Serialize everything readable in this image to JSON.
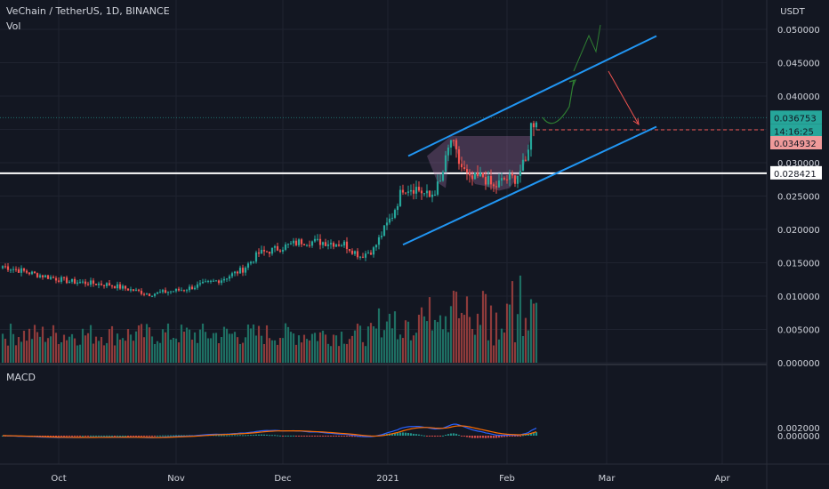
{
  "header": {
    "title": "VeChain / TetherUS, 1D, BINANCE",
    "vol_label": "Vol"
  },
  "currency_label": "USDT",
  "macd_label": "MACD",
  "colors": {
    "background": "#131722",
    "grid": "#1f2330",
    "up": "#26a69a",
    "down": "#ef5350",
    "vol_up": "#1e6f63",
    "vol_down": "#8e3b3b",
    "channel": "#2196f3",
    "macd_line": "#2962ff",
    "signal_line": "#ff6d00",
    "text": "#d1d4dc"
  },
  "price_scale": {
    "ticks": [
      "0.050000",
      "0.045000",
      "0.040000",
      "0.035000",
      "0.030000",
      "0.025000",
      "0.020000",
      "0.015000",
      "0.010000",
      "0.005000",
      "0.000000"
    ],
    "badges": {
      "last": "0.036753",
      "countdown": "14:16:25",
      "target": "0.034932",
      "support": "0.028421"
    }
  },
  "macd_scale": {
    "ticks": [
      "0.002000",
      "0.000000"
    ]
  },
  "time_axis": {
    "labels": [
      "Oct",
      "Nov",
      "Dec",
      "2021",
      "Feb",
      "Mar",
      "Apr"
    ]
  },
  "chart_data": {
    "type": "candlestick",
    "title": "VeChain / TetherUS, 1D, BINANCE",
    "ylim": [
      0.0,
      0.05
    ],
    "support_level": 0.028421,
    "last_price": 0.036753,
    "target_level": 0.034932,
    "close_anchors": [
      [
        0,
        0.0145
      ],
      [
        12,
        0.0133
      ],
      [
        25,
        0.0122
      ],
      [
        40,
        0.0117
      ],
      [
        55,
        0.0103
      ],
      [
        68,
        0.011
      ],
      [
        82,
        0.0125
      ],
      [
        90,
        0.014
      ],
      [
        96,
        0.0164
      ],
      [
        102,
        0.017
      ],
      [
        112,
        0.0182
      ],
      [
        120,
        0.0181
      ],
      [
        128,
        0.0178
      ],
      [
        134,
        0.016
      ],
      [
        139,
        0.017
      ],
      [
        143,
        0.02
      ],
      [
        146,
        0.0221
      ],
      [
        150,
        0.0263
      ],
      [
        155,
        0.0262
      ],
      [
        160,
        0.0248
      ],
      [
        164,
        0.027
      ],
      [
        168,
        0.0335
      ],
      [
        171,
        0.03
      ],
      [
        175,
        0.0273
      ],
      [
        180,
        0.028
      ],
      [
        184,
        0.0262
      ],
      [
        188,
        0.0275
      ],
      [
        192,
        0.0277
      ],
      [
        196,
        0.03
      ],
      [
        198,
        0.0355
      ],
      [
        200,
        0.0368
      ]
    ],
    "channel_upper": [
      [
        152,
        0.031
      ],
      [
        245,
        0.049
      ]
    ],
    "channel_lower": [
      [
        150,
        0.0177
      ],
      [
        245,
        0.0354
      ]
    ],
    "volume_ylim": [
      0,
      0.0135
    ],
    "macd": {
      "ylim": [
        -0.0012,
        0.0032
      ]
    }
  }
}
